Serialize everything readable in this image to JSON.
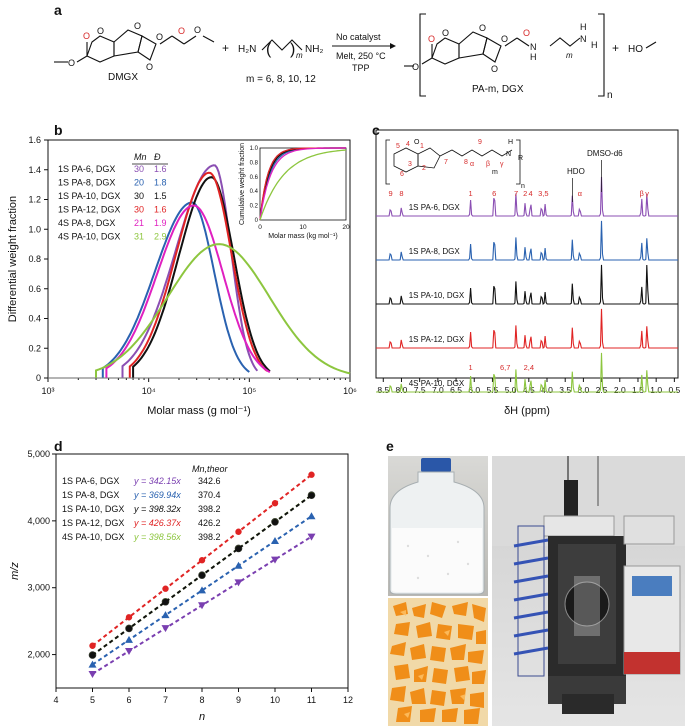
{
  "panel_labels": {
    "a": "a",
    "b": "b",
    "c": "c",
    "d": "d",
    "e": "e"
  },
  "panel_a": {
    "reactant1_label": "DMGX",
    "plus1": "+",
    "diamine_formula_left": "H₂N",
    "diamine_formula_right": "NH₂",
    "diamine_m": "m",
    "m_values": "m = 6, 8, 10, 12",
    "arrow_above": "No catalyst",
    "arrow_below_1": "Melt, 250 °C",
    "arrow_below_2": "TPP",
    "product_label": "PA-m, DGX",
    "product_n": "n",
    "product_H_top": "H",
    "product_N": "N",
    "product_H_end": "H",
    "product_m": "m",
    "plus2": "+",
    "byproduct": "HO",
    "colors": {
      "red": "#d62a2a",
      "black": "#111111"
    }
  },
  "chart_data": [
    {
      "type": "line",
      "panel": "b",
      "title": "",
      "xlabel": "Molar mass (g mol⁻¹)",
      "ylabel": "Differential weight fraction",
      "xscale": "log",
      "xlim": [
        1000,
        1000000
      ],
      "ylim": [
        0,
        1.6
      ],
      "x_ticks": [
        "10³",
        "10⁴",
        "10⁵",
        "10⁶"
      ],
      "y_ticks": [
        "0",
        "0.2",
        "0.4",
        "0.6",
        "0.8",
        "1.0",
        "1.2",
        "1.4",
        "1.6"
      ],
      "legend_header": {
        "mn": "Mn",
        "d": "Đ"
      },
      "series": [
        {
          "name": "1S PA-6, DGX",
          "mn": "30",
          "d": "1.6",
          "color": "#8b4fb3",
          "peak_x": 45000,
          "peak_y": 1.43,
          "start_x": 5500,
          "end_x": 120000
        },
        {
          "name": "1S PA-8, DGX",
          "mn": "20",
          "d": "1.8",
          "color": "#2a62b0",
          "peak_x": 27000,
          "peak_y": 1.18,
          "start_x": 3500,
          "end_x": 100000
        },
        {
          "name": "1S PA-10, DGX",
          "mn": "30",
          "d": "1.5",
          "color": "#111111",
          "peak_x": 42000,
          "peak_y": 1.35,
          "start_x": 7000,
          "end_x": 160000
        },
        {
          "name": "1S PA-12, DGX",
          "mn": "30",
          "d": "1.6",
          "color": "#e02424",
          "peak_x": 40000,
          "peak_y": 1.38,
          "start_x": 6500,
          "end_x": 150000
        },
        {
          "name": "4S PA-8, DGX",
          "mn": "21",
          "d": "1.9",
          "color": "#e020c0",
          "peak_x": 28000,
          "peak_y": 1.16,
          "start_x": 3800,
          "end_x": 160000
        },
        {
          "name": "4S PA-10, DGX",
          "mn": "31",
          "d": "2.9",
          "color": "#8dc63f",
          "peak_x": 50000,
          "peak_y": 0.9,
          "start_x": 3000,
          "end_x": 1000000
        }
      ],
      "inset": {
        "xlabel": "Molar mass (kg mol⁻¹)",
        "ylabel": "Cumulative weight fraction",
        "xlim": [
          0,
          20
        ],
        "ylim": [
          0,
          1.0
        ],
        "x_ticks": [
          "0",
          "10",
          "20"
        ],
        "y_ticks": [
          "0",
          "0.2",
          "0.4",
          "0.6",
          "0.8",
          "1.0"
        ]
      }
    },
    {
      "type": "line",
      "panel": "c",
      "title": "",
      "xlabel": "δH (ppm)",
      "xlim": [
        8.7,
        0.4
      ],
      "x_ticks": [
        "8.5",
        "8.0",
        "7.5",
        "7.0",
        "6.5",
        "6.0",
        "5.5",
        "5.0",
        "4.5",
        "4.0",
        "3.5",
        "3.0",
        "2.5",
        "2.0",
        "1.5",
        "1.0",
        "0.5"
      ],
      "series": [
        {
          "name": "1S PA-6, DGX",
          "color": "#8b4fb3"
        },
        {
          "name": "1S PA-8, DGX",
          "color": "#2a62b0"
        },
        {
          "name": "1S PA-10, DGX",
          "color": "#111111"
        },
        {
          "name": "1S PA-12, DGX",
          "color": "#e02424"
        },
        {
          "name": "4S PA-10, DGX",
          "color": "#8dc63f"
        }
      ],
      "peak_ppm": [
        8.3,
        8.0,
        6.1,
        5.45,
        4.85,
        4.6,
        4.45,
        4.15,
        4.05,
        3.3,
        2.5,
        1.4,
        1.25,
        3.1
      ],
      "annotations": {
        "hdo": "HDO",
        "dmso": "DMSO-d6",
        "peak_labels": [
          "9",
          "8",
          "1",
          "6",
          "7",
          "2",
          "4",
          "3,5",
          "α",
          "β",
          "γ"
        ],
        "sub_labels": [
          "1",
          "6,7",
          "2,4"
        ]
      },
      "structure_numbers": [
        "5",
        "4",
        "1",
        "3",
        "2",
        "6",
        "7",
        "8",
        "9",
        "α",
        "β",
        "γ",
        "m",
        "n",
        "H",
        "N",
        "R",
        "O"
      ]
    },
    {
      "type": "scatter",
      "panel": "d",
      "title": "",
      "xlabel": "n",
      "ylabel": "m/z",
      "xlim": [
        4,
        12
      ],
      "ylim": [
        1500,
        5000
      ],
      "x_ticks": [
        "4",
        "5",
        "6",
        "7",
        "8",
        "9",
        "10",
        "11",
        "12"
      ],
      "y_ticks": [
        "2,000",
        "3,000",
        "4,000",
        "5,000"
      ],
      "legend_header": "Mn,theor",
      "x": [
        5,
        6,
        7,
        8,
        9,
        10,
        11
      ],
      "series": [
        {
          "name": "1S PA-6, DGX",
          "fit": "y = 342.15x",
          "mtheor": "342.6",
          "color": "#7a3fb0",
          "marker": "triangle-down",
          "values": [
            1710,
            2053,
            2395,
            2737,
            3079,
            3421,
            3764
          ]
        },
        {
          "name": "1S PA-8, DGX",
          "fit": "y = 369.94x",
          "mtheor": "370.4",
          "color": "#2a62b0",
          "marker": "triangle-up",
          "values": [
            1850,
            2220,
            2590,
            2960,
            3329,
            3699,
            4069
          ]
        },
        {
          "name": "1S PA-10, DGX",
          "fit": "y = 398.32x",
          "mtheor": "398.2",
          "color": "#111111",
          "marker": "circle",
          "values": [
            1992,
            2390,
            2788,
            3187,
            3585,
            3983,
            4382
          ]
        },
        {
          "name": "1S PA-12, DGX",
          "fit": "y = 426.37x",
          "mtheor": "426.2",
          "color": "#e02424",
          "marker": "circle",
          "values": [
            2132,
            2558,
            2985,
            3411,
            3837,
            4264,
            4690
          ]
        },
        {
          "name": "4S PA-10, DGX",
          "fit": "y = 398.56x",
          "mtheor": "398.2",
          "color": "#8dc63f",
          "marker": "circle",
          "values": [
            1993,
            2391,
            2790,
            3188,
            3587,
            3986,
            4384
          ]
        }
      ]
    }
  ],
  "panel_e": {
    "photos": [
      "bottle-of-white-pellets-photo",
      "orange-flakes-photo",
      "reactor-setup-photo"
    ]
  }
}
